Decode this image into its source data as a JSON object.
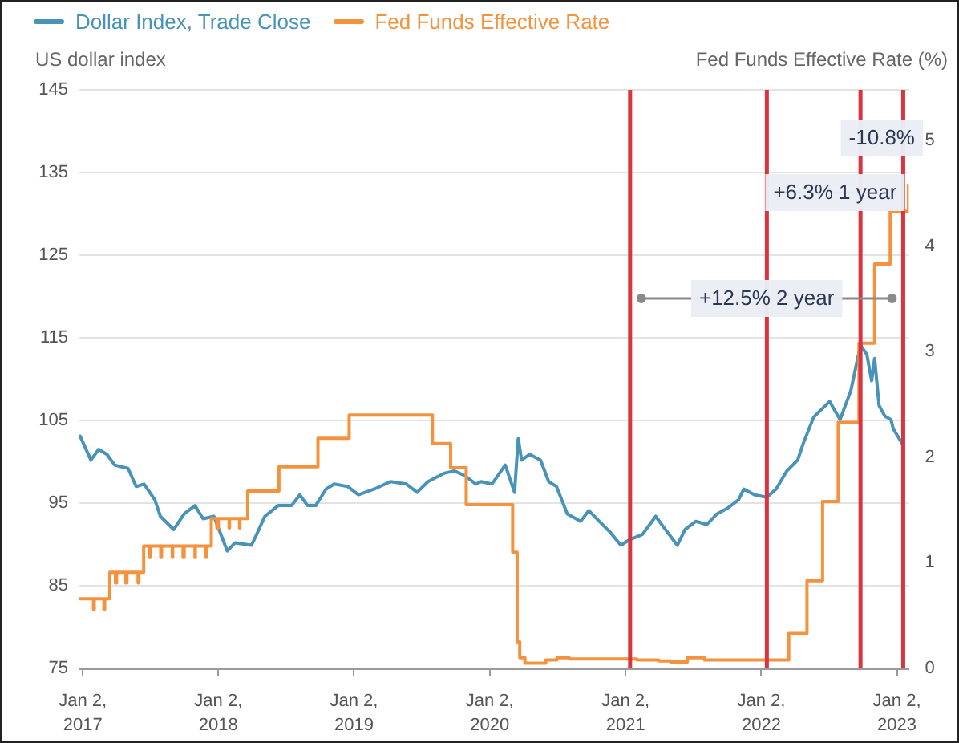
{
  "chart_data": {
    "type": "line",
    "ylabel": "US dollar index",
    "y2label": "Fed Funds Effective Rate (%)",
    "xlim": [
      "2016-12-24",
      "2023-02-03"
    ],
    "xticks": [
      {
        "value": "2017-01-02",
        "label": "Jan 2, 2017"
      },
      {
        "value": "2018-01-02",
        "label": "Jan 2, 2018"
      },
      {
        "value": "2019-01-02",
        "label": "Jan 2, 2019"
      },
      {
        "value": "2020-01-02",
        "label": "Jan 2, 2020"
      },
      {
        "value": "2021-01-02",
        "label": "Jan 2, 2021"
      },
      {
        "value": "2022-01-02",
        "label": "Jan 2, 2022"
      },
      {
        "value": "2023-01-02",
        "label": "Jan 2, 2023"
      }
    ],
    "ylim": [
      75,
      145
    ],
    "yticks": [
      75,
      85,
      95,
      105,
      115,
      125,
      135,
      145
    ],
    "y2lim": [
      0,
      5.48
    ],
    "y2ticks": [
      0,
      1,
      2,
      3,
      4,
      5
    ],
    "grid": "y",
    "legend": "top left",
    "series": [
      {
        "name": "Dollar Index, Trade Close",
        "type": "line",
        "color": "#4a93b8",
        "x": [
          "2016-12-26",
          "2017-01-24",
          "2017-02-14",
          "2017-03-08",
          "2017-03-29",
          "2017-05-04",
          "2017-05-26",
          "2017-06-16",
          "2017-07-15",
          "2017-07-30",
          "2017-09-04",
          "2017-10-02",
          "2017-10-31",
          "2017-11-22",
          "2017-12-21",
          "2018-01-26",
          "2018-02-16",
          "2018-04-01",
          "2018-04-15",
          "2018-05-07",
          "2018-06-12",
          "2018-07-18",
          "2018-08-09",
          "2018-08-30",
          "2018-09-21",
          "2018-10-19",
          "2018-11-10",
          "2018-12-16",
          "2019-01-14",
          "2019-02-26",
          "2019-04-10",
          "2019-05-23",
          "2019-06-21",
          "2019-07-20",
          "2019-09-01",
          "2019-09-29",
          "2019-10-28",
          "2019-11-26",
          "2019-12-10",
          "2020-01-08",
          "2020-02-13",
          "2020-03-09",
          "2020-03-19",
          "2020-03-28",
          "2020-04-19",
          "2020-05-18",
          "2020-06-09",
          "2020-06-30",
          "2020-07-29",
          "2020-09-03",
          "2020-09-25",
          "2020-10-23",
          "2020-11-21",
          "2020-12-20",
          "2021-01-14",
          "2021-02-16",
          "2021-03-24",
          "2021-04-14",
          "2021-05-21",
          "2021-06-11",
          "2021-07-10",
          "2021-08-08",
          "2021-09-05",
          "2021-10-04",
          "2021-11-02",
          "2021-11-16",
          "2021-12-15",
          "2022-01-17",
          "2022-02-11",
          "2022-03-12",
          "2022-04-10",
          "2022-04-24",
          "2022-05-23",
          "2022-07-05",
          "2022-08-02",
          "2022-08-31",
          "2022-09-26",
          "2022-10-13",
          "2022-10-26",
          "2022-11-03",
          "2022-11-15",
          "2022-12-01",
          "2022-12-17",
          "2022-12-23",
          "2023-01-19"
        ],
        "values": [
          103.1,
          100.2,
          101.5,
          100.9,
          99.6,
          99.2,
          97.0,
          97.3,
          95.4,
          93.4,
          91.8,
          93.7,
          94.7,
          93.1,
          93.4,
          89.2,
          90.2,
          89.9,
          91.2,
          93.4,
          94.7,
          94.7,
          96.0,
          94.7,
          94.7,
          96.7,
          97.3,
          97.0,
          96.0,
          96.7,
          97.6,
          97.3,
          96.3,
          97.6,
          98.6,
          98.9,
          98.3,
          97.3,
          97.6,
          97.3,
          99.6,
          96.3,
          102.8,
          100.2,
          100.9,
          100.2,
          97.6,
          97.0,
          93.7,
          92.8,
          94.1,
          92.8,
          91.5,
          89.9,
          90.6,
          91.2,
          93.4,
          92.1,
          89.9,
          91.8,
          92.8,
          92.4,
          93.7,
          94.4,
          95.4,
          96.7,
          96.0,
          95.7,
          96.7,
          98.9,
          100.2,
          102.1,
          105.4,
          107.3,
          105.1,
          108.6,
          114.1,
          113.0,
          109.8,
          112.5,
          106.8,
          105.5,
          105.1,
          104.0,
          102.0
        ]
      },
      {
        "name": "Fed Funds Effective Rate",
        "type": "step",
        "axis": "y2",
        "color": "#f5923e",
        "x": [
          "2016-12-26",
          "2017-01-31",
          "2017-02-02",
          "2017-02-28",
          "2017-03-02",
          "2017-03-16",
          "2017-03-31",
          "2017-04-03",
          "2017-04-28",
          "2017-05-01",
          "2017-05-31",
          "2017-06-02",
          "2017-06-15",
          "2017-06-30",
          "2017-07-03",
          "2017-07-31",
          "2017-08-02",
          "2017-08-31",
          "2017-09-01",
          "2017-09-29",
          "2017-10-02",
          "2017-10-31",
          "2017-11-01",
          "2017-11-30",
          "2017-12-01",
          "2017-12-14",
          "2017-12-29",
          "2018-01-02",
          "2018-01-31",
          "2018-02-01",
          "2018-02-28",
          "2018-03-01",
          "2018-03-22",
          "2018-06-14",
          "2018-09-27",
          "2018-12-20",
          "2019-08-01",
          "2019-09-19",
          "2019-10-31",
          "2020-03-04",
          "2020-03-16",
          "2020-03-23",
          "2020-04-06",
          "2020-06-01",
          "2020-07-01",
          "2020-08-03",
          "2021-02-01",
          "2021-04-01",
          "2021-05-03",
          "2021-06-17",
          "2021-08-02",
          "2022-03-17",
          "2022-05-05",
          "2022-06-16",
          "2022-07-28",
          "2022-09-22",
          "2022-11-03",
          "2022-12-15",
          "2023-02-02"
        ],
        "values": [
          0.66,
          0.56,
          0.66,
          0.56,
          0.66,
          0.91,
          0.81,
          0.91,
          0.81,
          0.91,
          0.81,
          0.91,
          1.16,
          1.05,
          1.16,
          1.05,
          1.16,
          1.05,
          1.16,
          1.05,
          1.16,
          1.05,
          1.16,
          1.05,
          1.16,
          1.42,
          1.33,
          1.42,
          1.33,
          1.42,
          1.33,
          1.42,
          1.68,
          1.91,
          2.18,
          2.4,
          2.13,
          1.9,
          1.55,
          1.1,
          0.25,
          0.1,
          0.05,
          0.08,
          0.1,
          0.09,
          0.08,
          0.07,
          0.06,
          0.1,
          0.08,
          0.33,
          0.83,
          1.58,
          2.33,
          3.08,
          3.83,
          4.33,
          4.58
        ]
      }
    ],
    "ref_lines": [
      {
        "axis": "x",
        "value": "2021-01-14",
        "color": "#d9343f"
      },
      {
        "axis": "x",
        "value": "2022-01-17",
        "color": "#d9343f"
      },
      {
        "axis": "x",
        "value": "2022-09-26",
        "color": "#d9343f"
      },
      {
        "axis": "x",
        "value": "2023-01-19",
        "color": "#d9343f"
      }
    ],
    "annotations": [
      "-10.8%",
      "+6.3% 1 year",
      "+12.5% 2 year"
    ]
  }
}
